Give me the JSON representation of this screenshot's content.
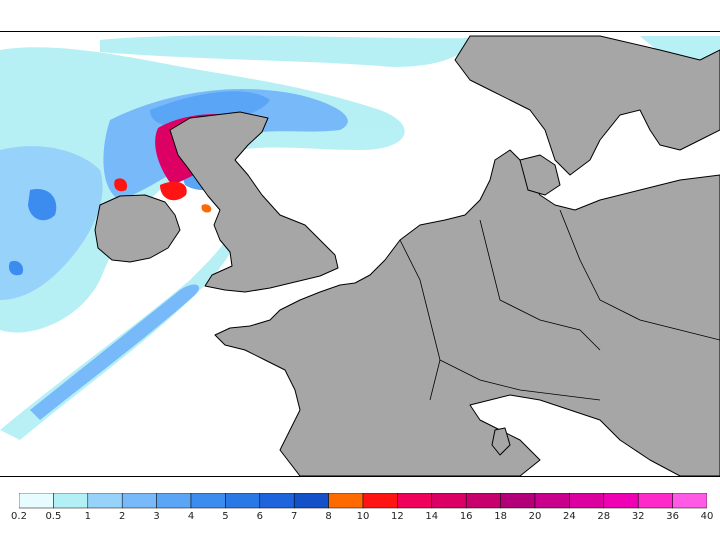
{
  "colors": {
    "land": "#a6a6a6",
    "sea": "#ffffff",
    "coast": "#000000"
  },
  "legend": {
    "ticks": [
      "0.2",
      "0.5",
      "1",
      "2",
      "3",
      "4",
      "5",
      "6",
      "7",
      "8",
      "10",
      "12",
      "14",
      "16",
      "18",
      "20",
      "24",
      "28",
      "32",
      "36",
      "40"
    ],
    "colors": [
      "#e6fcff",
      "#b3f0f5",
      "#96d2fa",
      "#78b9fa",
      "#5aa5f5",
      "#3c8cf0",
      "#2a78e6",
      "#1e64dc",
      "#1450c8",
      "#ff6a00",
      "#ff1414",
      "#f0005a",
      "#dc0064",
      "#c8006e",
      "#b40078",
      "#c8008c",
      "#dc00a0",
      "#f000b4",
      "#ff28c8",
      "#ff5ae6"
    ]
  }
}
